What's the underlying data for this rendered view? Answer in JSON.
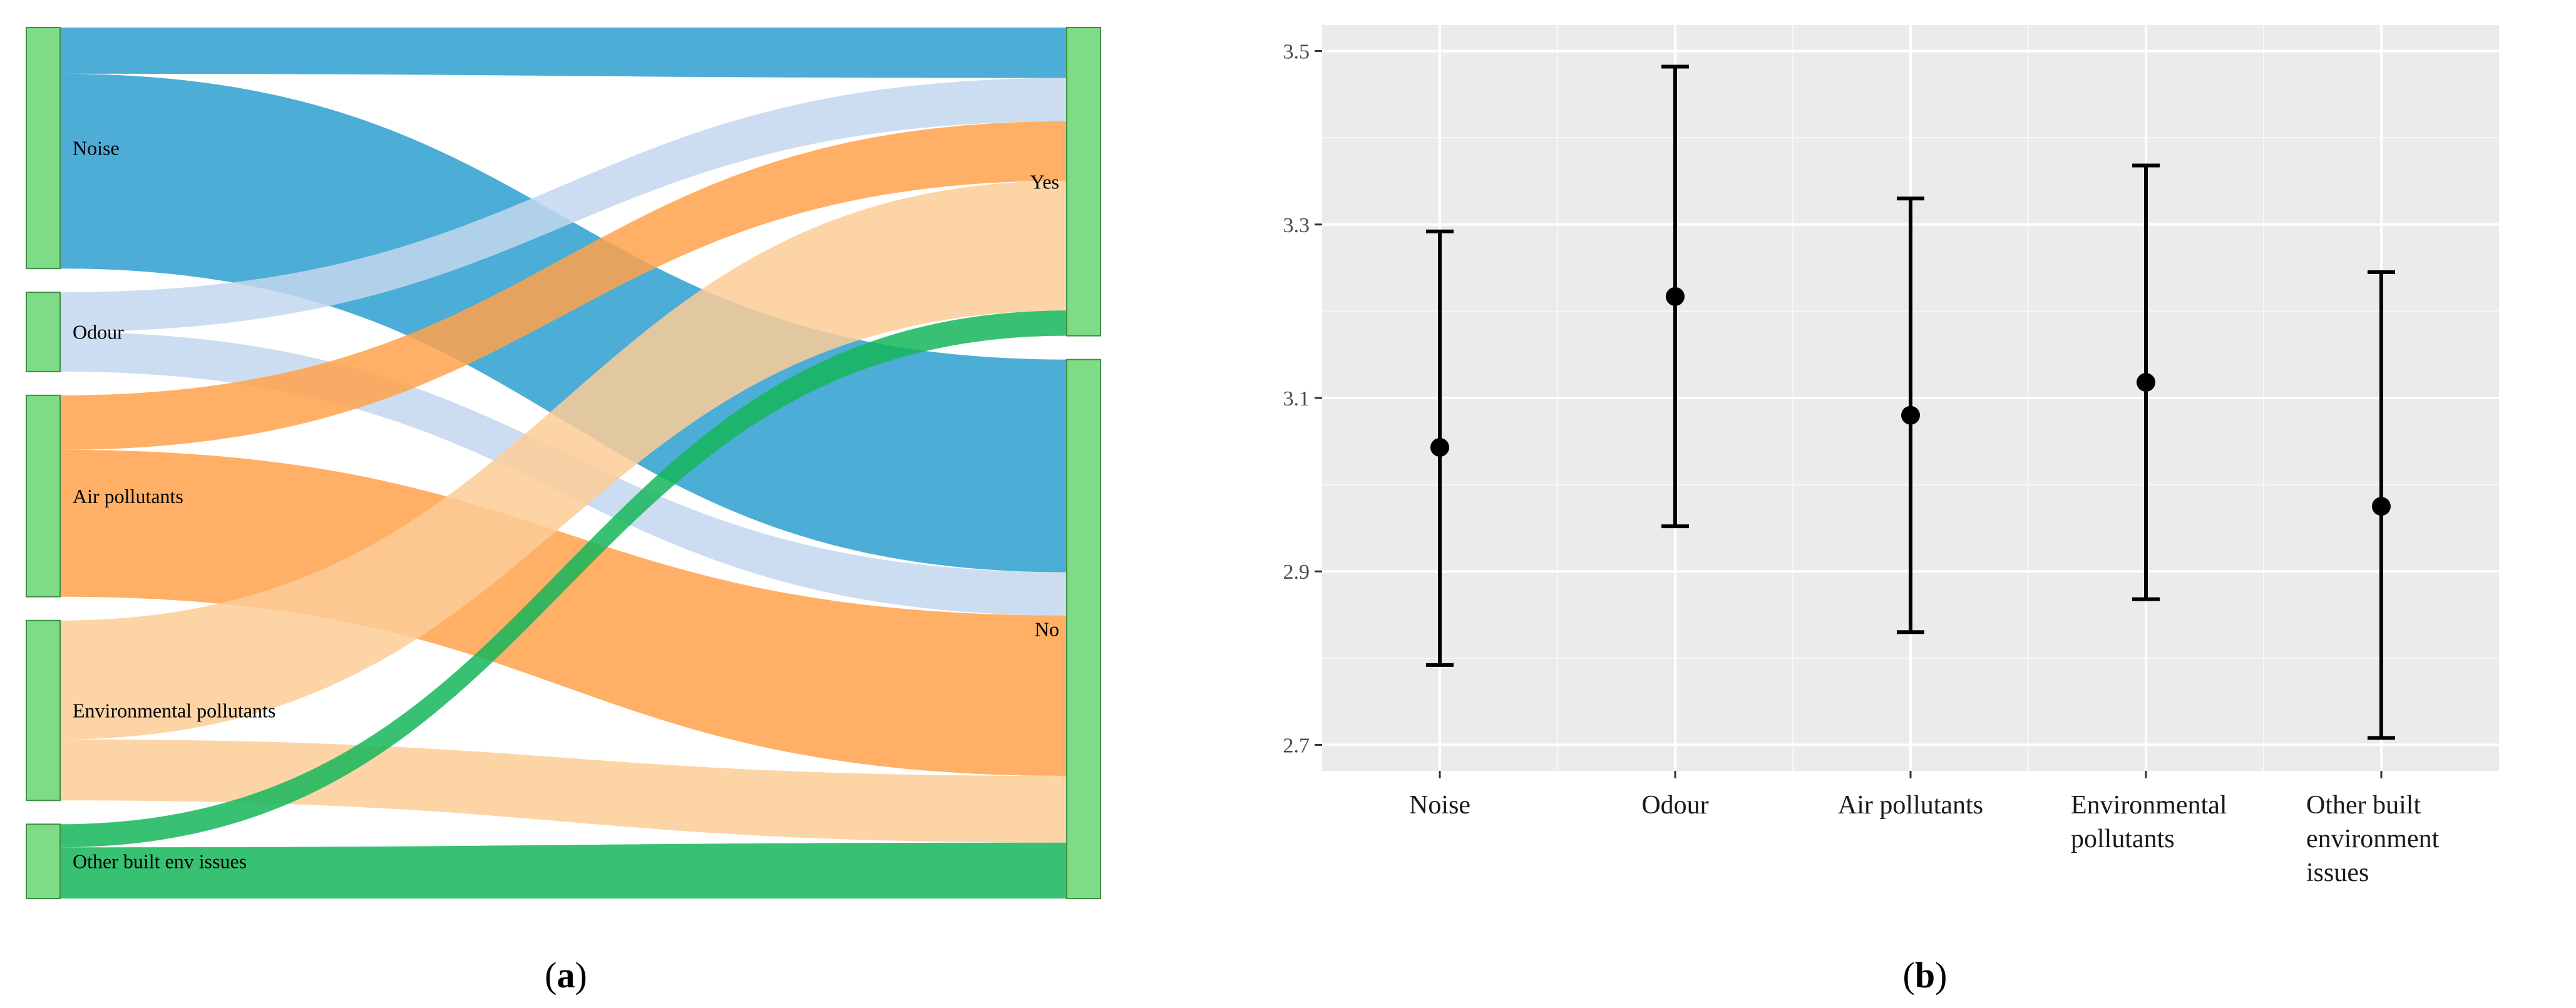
{
  "panels": {
    "a": {
      "label_open": "(",
      "label_letter": "a",
      "label_close": ")"
    },
    "b": {
      "label_open": "(",
      "label_letter": "b",
      "label_close": ")"
    }
  },
  "chart_data": [
    {
      "type": "sankey",
      "sources": [
        "Noise",
        "Odour",
        "Air pollutants",
        "Environmental pollutants",
        "Other built env issues"
      ],
      "targets": [
        "Yes",
        "No"
      ],
      "links": [
        {
          "source": "Noise",
          "target": "Yes",
          "value": 28
        },
        {
          "source": "Noise",
          "target": "No",
          "value": 118
        },
        {
          "source": "Odour",
          "target": "Yes",
          "value": 24
        },
        {
          "source": "Odour",
          "target": "No",
          "value": 24
        },
        {
          "source": "Air pollutants",
          "target": "Yes",
          "value": 33
        },
        {
          "source": "Air pollutants",
          "target": "No",
          "value": 89
        },
        {
          "source": "Environmental pollutants",
          "target": "Yes",
          "value": 72
        },
        {
          "source": "Environmental pollutants",
          "target": "No",
          "value": 37
        },
        {
          "source": "Other built env issues",
          "target": "Yes",
          "value": 14
        },
        {
          "source": "Other built env issues",
          "target": "No",
          "value": 31
        }
      ],
      "colors": {
        "Noise": "#2d9fcf",
        "Odour": "#c3d7ee",
        "Air pollutants": "#ffa24b",
        "Environmental pollutants": "#fdcc97",
        "Other built env issues": "#15b65b",
        "node": "#7ddc85"
      }
    },
    {
      "type": "errorbar",
      "categories": [
        "Noise",
        "Odour",
        "Air pollutants",
        "Environmental pollutants",
        "Other built environment issues"
      ],
      "category_lines": [
        [
          "Noise"
        ],
        [
          "Odour"
        ],
        [
          "Air pollutants"
        ],
        [
          "Environmental",
          "pollutants"
        ],
        [
          "Other built",
          "environment",
          "issues"
        ]
      ],
      "means": [
        3.043,
        3.217,
        3.08,
        3.118,
        2.975
      ],
      "lower": [
        2.792,
        2.952,
        2.83,
        2.868,
        2.708
      ],
      "upper": [
        3.292,
        3.482,
        3.33,
        3.368,
        3.245
      ],
      "ylim": [
        2.67,
        3.53
      ],
      "yticks": [
        "2.7",
        "2.9",
        "3.1",
        "3.3",
        "3.5"
      ],
      "grid": true,
      "background": "#ebebeb"
    }
  ]
}
